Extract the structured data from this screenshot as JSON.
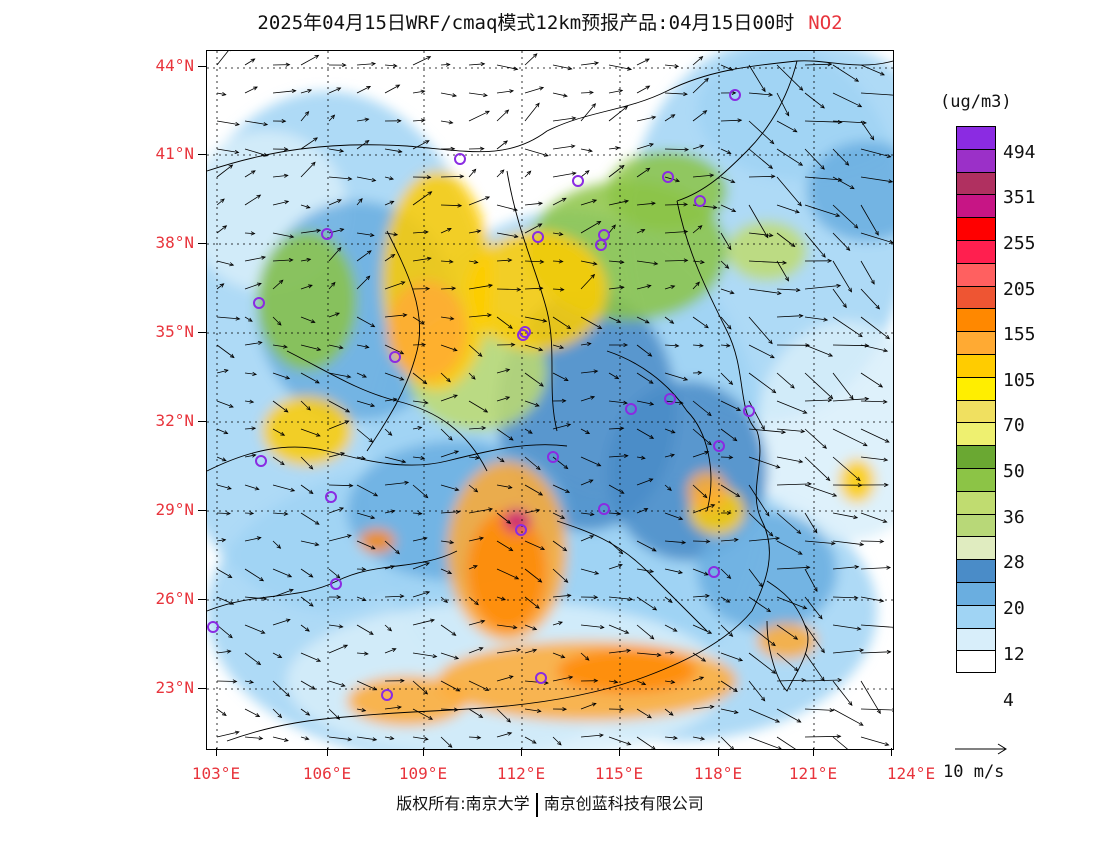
{
  "title": {
    "main": "2025年04月15日WRF/cmaq模式12km预报产品:04月15日00时",
    "pollutant": "NO2",
    "pollutant_color": "#e8343c"
  },
  "axes": {
    "lat_labels": [
      "44°N",
      "41°N",
      "38°N",
      "35°N",
      "32°N",
      "29°N",
      "26°N",
      "23°N"
    ],
    "lon_labels": [
      "103°E",
      "106°E",
      "109°E",
      "112°E",
      "115°E",
      "118°E",
      "121°E",
      "124°E"
    ],
    "label_color": "#e8343c"
  },
  "colorbar": {
    "unit": "(ug/m3)",
    "labels": [
      "494",
      "351",
      "255",
      "205",
      "155",
      "105",
      "70",
      "50",
      "36",
      "28",
      "20",
      "12",
      "4"
    ],
    "colors": [
      "#8b2be2",
      "#9b30c8",
      "#b03060",
      "#c71585",
      "#ff0000",
      "#ff1f4f",
      "#ff6060",
      "#ee5533",
      "#ff8800",
      "#ffaa33",
      "#ffcc00",
      "#ffee00",
      "#f0e060",
      "#eef070",
      "#6aa832",
      "#8cc446",
      "#c0dc70",
      "#b8d878",
      "#e0ecc0",
      "#4a8cc8",
      "#6aaee0",
      "#a0d4f4",
      "#d8eefa",
      "#ffffff"
    ]
  },
  "wind_legend": {
    "label": "10 m/s"
  },
  "footer": {
    "left": "版权所有:南京大学",
    "right": "南京创蓝科技有限公司"
  }
}
